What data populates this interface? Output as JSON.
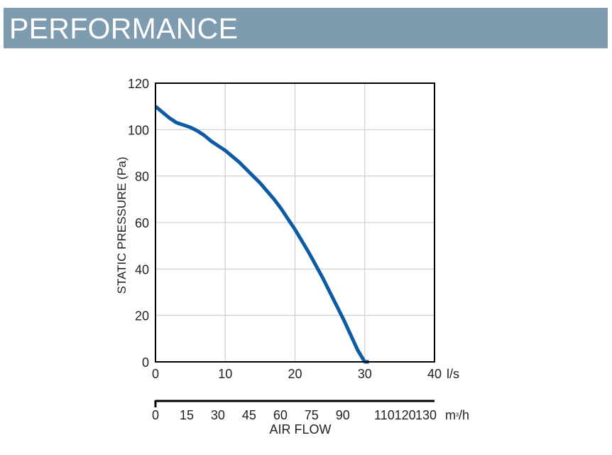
{
  "header": {
    "title": "PERFORMANCE"
  },
  "chart_data": {
    "type": "line",
    "ylabel": "STATIC PRESSURE (Pa)",
    "xlabel": "AIR FLOW",
    "xunit": "l/s",
    "x2unit": "m³/h",
    "xlim": [
      0,
      40
    ],
    "ylim": [
      0,
      120
    ],
    "grid": true,
    "y_ticks": [
      "0",
      "20",
      "40",
      "60",
      "80",
      "100",
      "120"
    ],
    "x_ticks": [
      "0",
      "10",
      "20",
      "30",
      "40"
    ],
    "x2_ticks": [
      "0",
      "15",
      "30",
      "45",
      "60",
      "75",
      "90",
      "110",
      "120",
      "130"
    ],
    "x2_values": [
      0,
      15,
      30,
      45,
      60,
      75,
      90,
      110,
      120,
      130
    ],
    "line_color": "#0c5ba3",
    "series": [
      {
        "name": "performance curve",
        "x": [
          0,
          1,
          2,
          3,
          4,
          5,
          6,
          7,
          8,
          9,
          10,
          11,
          12,
          13,
          14,
          15,
          16,
          17,
          18,
          19,
          20,
          21,
          22,
          23,
          24,
          25,
          26,
          27,
          28,
          29,
          30,
          30.6
        ],
        "y": [
          110,
          107.5,
          105,
          103,
          102,
          101,
          99.5,
          97.5,
          95,
          93,
          91,
          88.5,
          86,
          83,
          80,
          77,
          73.5,
          70,
          66,
          61.5,
          57,
          52,
          47,
          41.5,
          36,
          30,
          24,
          18,
          11.5,
          5,
          0,
          0
        ]
      }
    ]
  }
}
